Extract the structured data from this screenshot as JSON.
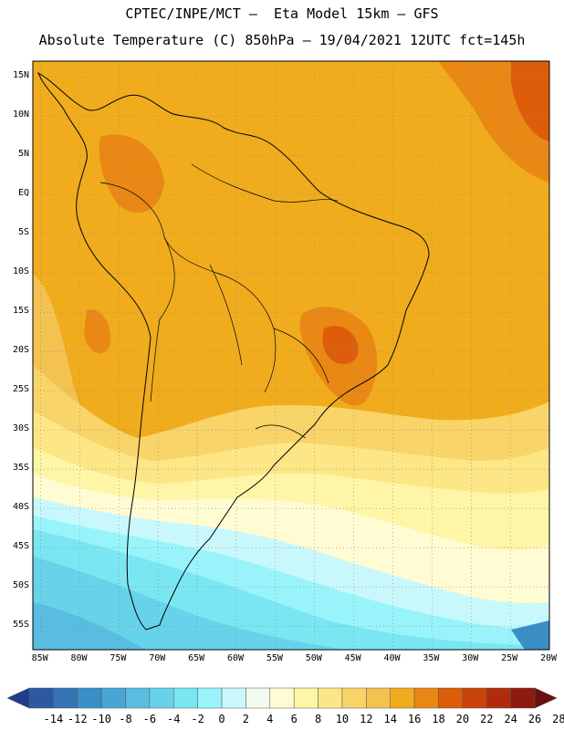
{
  "header": {
    "line1": "CPTEC/INPE/MCT —  Eta Model 15km — GFS",
    "line2": "Absolute Temperature (C) 850hPa — 19/04/2021 12UTC fct=145h"
  },
  "axes": {
    "lat_labels": [
      "15N",
      "10N",
      "5N",
      "EQ",
      "5S",
      "10S",
      "15S",
      "20S",
      "25S",
      "30S",
      "35S",
      "40S",
      "45S",
      "50S",
      "55S"
    ],
    "lat_values": [
      15,
      10,
      5,
      0,
      -5,
      -10,
      -15,
      -20,
      -25,
      -30,
      -35,
      -40,
      -45,
      -50,
      -55
    ],
    "lon_labels": [
      "85W",
      "80W",
      "75W",
      "70W",
      "65W",
      "60W",
      "55W",
      "50W",
      "45W",
      "40W",
      "35W",
      "30W",
      "25W",
      "20W"
    ],
    "lon_values": [
      -85,
      -80,
      -75,
      -70,
      -65,
      -60,
      -55,
      -50,
      -45,
      -40,
      -35,
      -30,
      -25,
      -20
    ],
    "lat_range": [
      -58,
      17
    ],
    "lon_range": [
      -86,
      -20
    ],
    "grid": "dotted"
  },
  "colorbar": {
    "labels": [
      "-14",
      "-12",
      "-10",
      "-8",
      "-6",
      "-4",
      "-2",
      "0",
      "2",
      "4",
      "6",
      "8",
      "10",
      "12",
      "14",
      "16",
      "18",
      "20",
      "22",
      "24",
      "26",
      "28"
    ],
    "colors": [
      "#1f3d8c",
      "#2b5aa3",
      "#3474b5",
      "#3a8ec6",
      "#48a6d4",
      "#58bde0",
      "#66d3ea",
      "#7ae6f2",
      "#98f4fa",
      "#c8f8fb",
      "#f0fbf0",
      "#fffbd2",
      "#fff5a6",
      "#fde686",
      "#f8d469",
      "#f4c251",
      "#f0ac1d",
      "#e98814",
      "#dd5d0a",
      "#c9420a",
      "#b02b0a",
      "#8e1a10",
      "#6b1012"
    ]
  },
  "map_layers": {
    "temperature_field": "filled-contours",
    "overlays": [
      "coastlines",
      "country-borders",
      "state-borders"
    ]
  }
}
